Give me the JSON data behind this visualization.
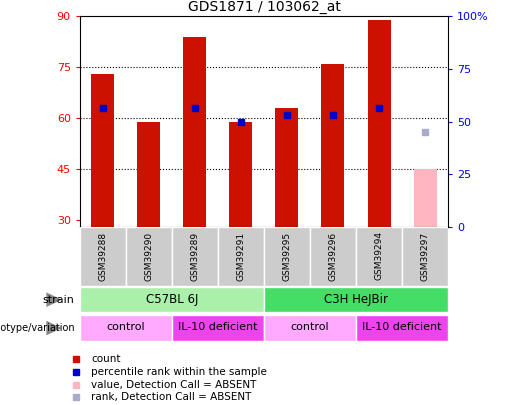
{
  "title": "GDS1871 / 103062_at",
  "samples": [
    "GSM39288",
    "GSM39290",
    "GSM39289",
    "GSM39291",
    "GSM39295",
    "GSM39296",
    "GSM39294",
    "GSM39297"
  ],
  "count_values": [
    73,
    59,
    84,
    59,
    63,
    76,
    89,
    null
  ],
  "percentile_values": [
    63,
    null,
    63,
    59,
    61,
    61,
    63,
    null
  ],
  "absent_value": 45,
  "absent_rank": 56,
  "absent_index": 7,
  "ylim_left": [
    28,
    90
  ],
  "ylim_right": [
    0,
    100
  ],
  "yticks_left": [
    30,
    45,
    60,
    75,
    90
  ],
  "yticks_right": [
    0,
    25,
    50,
    75,
    100
  ],
  "ytick_labels_right": [
    "0",
    "25",
    "50",
    "75",
    "100%"
  ],
  "strain_labels": [
    {
      "text": "C57BL 6J",
      "span": [
        0,
        4
      ],
      "color": "#aaf0aa"
    },
    {
      "text": "C3H HeJBir",
      "span": [
        4,
        8
      ],
      "color": "#44dd66"
    }
  ],
  "genotype_labels": [
    {
      "text": "control",
      "span": [
        0,
        2
      ],
      "color": "#ffaaff"
    },
    {
      "text": "IL-10 deficient",
      "span": [
        2,
        4
      ],
      "color": "#ee44ee"
    },
    {
      "text": "control",
      "span": [
        4,
        6
      ],
      "color": "#ffaaff"
    },
    {
      "text": "IL-10 deficient",
      "span": [
        6,
        8
      ],
      "color": "#ee44ee"
    }
  ],
  "bar_color_red": "#cc1100",
  "bar_color_pink": "#ffb6c1",
  "dot_color_blue": "#0000cc",
  "dot_color_lightblue": "#aaaacc",
  "plot_bg_color": "#ffffff",
  "sample_bg_color": "#cccccc",
  "legend_items": [
    {
      "color": "#cc1100",
      "label": "count"
    },
    {
      "color": "#0000cc",
      "label": "percentile rank within the sample"
    },
    {
      "color": "#ffb6c1",
      "label": "value, Detection Call = ABSENT"
    },
    {
      "color": "#aaaacc",
      "label": "rank, Detection Call = ABSENT"
    }
  ],
  "bar_width": 0.5,
  "xlim": [
    -0.5,
    7.5
  ]
}
